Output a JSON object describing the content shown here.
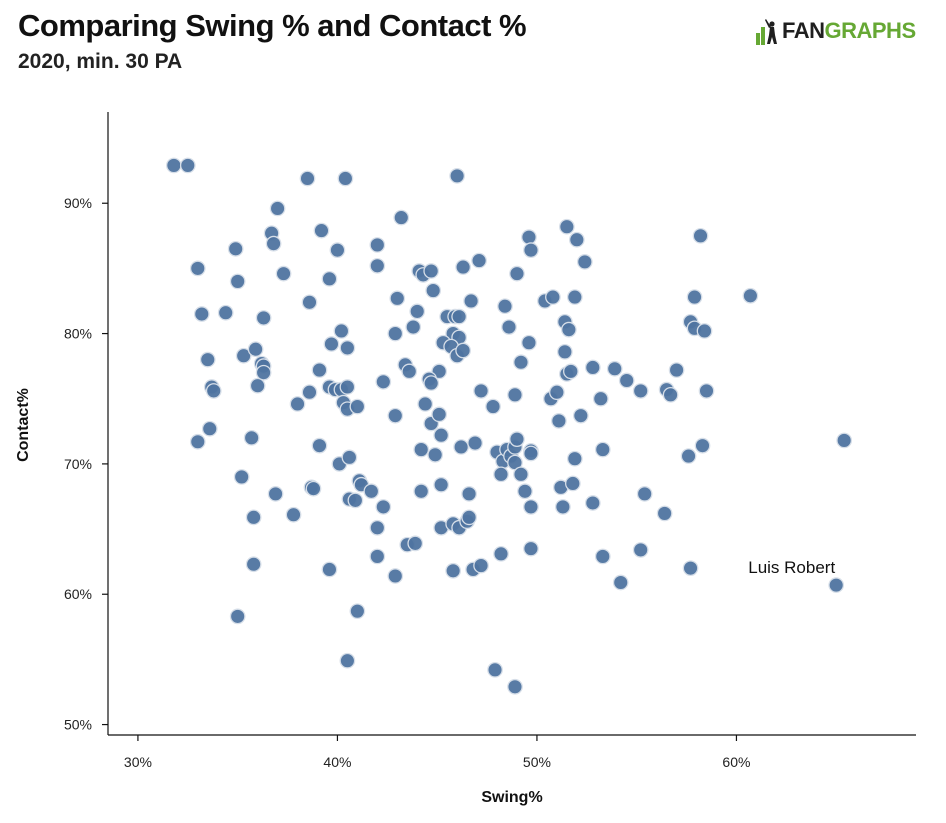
{
  "header": {
    "title": "Comparing Swing % and Contact %",
    "subtitle": "2020, min. 30 PA"
  },
  "logo": {
    "icon": "batter-silhouette-icon",
    "text_fan": "FAN",
    "text_graphs": "GRAPHS",
    "colors": {
      "fan": "#1f1f1f",
      "graphs": "#66a834"
    }
  },
  "chart_data": {
    "type": "scatter",
    "xlabel": "Swing%",
    "ylabel": "Contact%",
    "xlim": [
      28.5,
      69
    ],
    "ylim": [
      49.2,
      97
    ],
    "x_ticks": [
      30,
      40,
      50,
      60
    ],
    "x_tick_labels": [
      "30%",
      "40%",
      "50%",
      "60%"
    ],
    "y_ticks": [
      50,
      60,
      70,
      80,
      90
    ],
    "y_tick_labels": [
      "50%",
      "60%",
      "70%",
      "80%",
      "90%"
    ],
    "grid": false,
    "point_color": "#4f74a0",
    "point_stroke": "#d6dee8",
    "annotations": [
      {
        "text": "Luis Robert",
        "x": 65.0,
        "y": 60.7
      }
    ],
    "points": [
      [
        31.8,
        92.9
      ],
      [
        32.5,
        92.9
      ],
      [
        38.5,
        91.9
      ],
      [
        40.4,
        91.9
      ],
      [
        46.0,
        92.1
      ],
      [
        37.0,
        89.6
      ],
      [
        43.2,
        88.9
      ],
      [
        36.7,
        87.7
      ],
      [
        39.2,
        87.9
      ],
      [
        51.5,
        88.2
      ],
      [
        36.8,
        86.9
      ],
      [
        49.6,
        87.4
      ],
      [
        52.0,
        87.2
      ],
      [
        58.2,
        87.5
      ],
      [
        34.9,
        86.5
      ],
      [
        40.0,
        86.4
      ],
      [
        42.0,
        86.8
      ],
      [
        49.7,
        86.4
      ],
      [
        33.0,
        85.0
      ],
      [
        37.3,
        84.6
      ],
      [
        39.6,
        84.2
      ],
      [
        42.0,
        85.2
      ],
      [
        44.1,
        84.8
      ],
      [
        44.3,
        84.5
      ],
      [
        44.7,
        84.8
      ],
      [
        46.3,
        85.1
      ],
      [
        47.1,
        85.6
      ],
      [
        49.0,
        84.6
      ],
      [
        52.4,
        85.5
      ],
      [
        35.0,
        84.0
      ],
      [
        38.6,
        82.4
      ],
      [
        43.0,
        82.7
      ],
      [
        44.0,
        81.7
      ],
      [
        44.8,
        83.3
      ],
      [
        46.7,
        82.5
      ],
      [
        48.4,
        82.1
      ],
      [
        50.4,
        82.5
      ],
      [
        50.8,
        82.8
      ],
      [
        51.9,
        82.8
      ],
      [
        57.9,
        82.8
      ],
      [
        60.7,
        82.9
      ],
      [
        33.2,
        81.5
      ],
      [
        34.4,
        81.6
      ],
      [
        36.3,
        81.2
      ],
      [
        45.5,
        81.3
      ],
      [
        45.9,
        81.3
      ],
      [
        46.1,
        81.3
      ],
      [
        48.6,
        80.5
      ],
      [
        51.4,
        80.9
      ],
      [
        51.6,
        80.3
      ],
      [
        57.7,
        80.9
      ],
      [
        57.9,
        80.4
      ],
      [
        58.4,
        80.2
      ],
      [
        40.2,
        80.2
      ],
      [
        42.9,
        80.0
      ],
      [
        43.8,
        80.5
      ],
      [
        45.8,
        80.0
      ],
      [
        46.1,
        79.7
      ],
      [
        40.5,
        78.9
      ],
      [
        39.7,
        79.2
      ],
      [
        45.3,
        79.3
      ],
      [
        45.7,
        79.0
      ],
      [
        46.0,
        78.3
      ],
      [
        46.3,
        78.7
      ],
      [
        49.6,
        79.3
      ],
      [
        51.4,
        78.6
      ],
      [
        33.5,
        78.0
      ],
      [
        35.3,
        78.3
      ],
      [
        35.9,
        78.8
      ],
      [
        36.2,
        77.7
      ],
      [
        36.3,
        77.5
      ],
      [
        36.3,
        77.0
      ],
      [
        39.1,
        77.2
      ],
      [
        43.4,
        77.6
      ],
      [
        43.6,
        77.1
      ],
      [
        45.1,
        77.1
      ],
      [
        49.2,
        77.8
      ],
      [
        51.5,
        76.9
      ],
      [
        51.7,
        77.1
      ],
      [
        52.8,
        77.4
      ],
      [
        53.9,
        77.3
      ],
      [
        57.0,
        77.2
      ],
      [
        33.7,
        75.9
      ],
      [
        33.8,
        75.6
      ],
      [
        36.0,
        76.0
      ],
      [
        38.0,
        74.6
      ],
      [
        38.6,
        75.5
      ],
      [
        39.6,
        75.9
      ],
      [
        39.9,
        75.7
      ],
      [
        40.2,
        75.7
      ],
      [
        40.5,
        75.9
      ],
      [
        40.3,
        74.7
      ],
      [
        40.5,
        74.2
      ],
      [
        41.0,
        74.4
      ],
      [
        42.3,
        76.3
      ],
      [
        44.4,
        74.6
      ],
      [
        44.6,
        76.5
      ],
      [
        44.7,
        76.2
      ],
      [
        47.2,
        75.6
      ],
      [
        47.8,
        74.4
      ],
      [
        48.9,
        75.3
      ],
      [
        50.7,
        75.0
      ],
      [
        51.0,
        75.5
      ],
      [
        53.2,
        75.0
      ],
      [
        54.5,
        76.4
      ],
      [
        55.2,
        75.6
      ],
      [
        56.5,
        75.7
      ],
      [
        56.7,
        75.3
      ],
      [
        58.5,
        75.6
      ],
      [
        33.0,
        71.7
      ],
      [
        33.6,
        72.7
      ],
      [
        35.7,
        72.0
      ],
      [
        39.1,
        71.4
      ],
      [
        42.9,
        73.7
      ],
      [
        44.2,
        71.1
      ],
      [
        44.7,
        73.1
      ],
      [
        45.1,
        73.8
      ],
      [
        45.2,
        72.2
      ],
      [
        46.2,
        71.3
      ],
      [
        46.9,
        71.6
      ],
      [
        48.0,
        70.9
      ],
      [
        48.3,
        70.2
      ],
      [
        48.5,
        71.1
      ],
      [
        48.7,
        70.6
      ],
      [
        48.9,
        71.3
      ],
      [
        49.0,
        71.9
      ],
      [
        49.7,
        71.0
      ],
      [
        49.7,
        70.8
      ],
      [
        51.1,
        73.3
      ],
      [
        52.2,
        73.7
      ],
      [
        53.3,
        71.1
      ],
      [
        57.6,
        70.6
      ],
      [
        58.3,
        71.4
      ],
      [
        65.4,
        71.8
      ],
      [
        35.2,
        69.0
      ],
      [
        36.9,
        67.7
      ],
      [
        38.7,
        68.2
      ],
      [
        38.8,
        68.1
      ],
      [
        40.1,
        70.0
      ],
      [
        40.6,
        70.5
      ],
      [
        40.6,
        67.3
      ],
      [
        40.9,
        67.2
      ],
      [
        41.1,
        68.7
      ],
      [
        41.2,
        68.4
      ],
      [
        41.7,
        67.9
      ],
      [
        42.3,
        66.7
      ],
      [
        44.2,
        67.9
      ],
      [
        44.9,
        70.7
      ],
      [
        45.2,
        68.4
      ],
      [
        46.6,
        67.7
      ],
      [
        48.2,
        69.2
      ],
      [
        48.9,
        70.1
      ],
      [
        49.2,
        69.2
      ],
      [
        49.4,
        67.9
      ],
      [
        51.2,
        68.2
      ],
      [
        51.8,
        68.5
      ],
      [
        51.9,
        70.4
      ],
      [
        52.8,
        67.0
      ],
      [
        55.4,
        67.7
      ],
      [
        35.8,
        65.9
      ],
      [
        37.8,
        66.1
      ],
      [
        42.0,
        65.1
      ],
      [
        45.2,
        65.1
      ],
      [
        45.8,
        65.4
      ],
      [
        46.1,
        65.1
      ],
      [
        46.5,
        65.6
      ],
      [
        46.6,
        65.9
      ],
      [
        49.7,
        66.7
      ],
      [
        51.3,
        66.7
      ],
      [
        56.4,
        66.2
      ],
      [
        35.8,
        62.3
      ],
      [
        39.6,
        61.9
      ],
      [
        42.0,
        62.9
      ],
      [
        42.9,
        61.4
      ],
      [
        43.5,
        63.8
      ],
      [
        43.9,
        63.9
      ],
      [
        45.8,
        61.8
      ],
      [
        46.8,
        61.9
      ],
      [
        47.2,
        62.2
      ],
      [
        48.2,
        63.1
      ],
      [
        49.7,
        63.5
      ],
      [
        53.3,
        62.9
      ],
      [
        55.2,
        63.4
      ],
      [
        54.2,
        60.9
      ],
      [
        57.7,
        62.0
      ],
      [
        65.0,
        60.7
      ],
      [
        35.0,
        58.3
      ],
      [
        41.0,
        58.7
      ],
      [
        40.5,
        54.9
      ],
      [
        47.9,
        54.2
      ],
      [
        48.9,
        52.9
      ]
    ]
  }
}
